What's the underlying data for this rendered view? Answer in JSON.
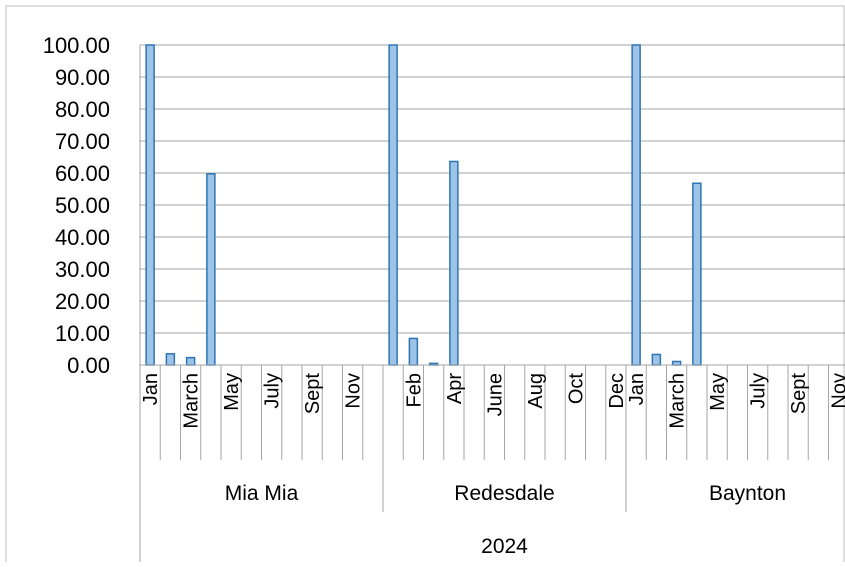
{
  "chart_data": {
    "type": "bar",
    "title": "",
    "xlabel": "",
    "ylabel": "",
    "ylim": [
      0,
      100
    ],
    "yticks": [
      "0.00",
      "10.00",
      "20.00",
      "30.00",
      "40.00",
      "50.00",
      "60.00",
      "70.00",
      "80.00",
      "90.00",
      "100.00"
    ],
    "grid": true,
    "legend": "none",
    "bar_color": "#9DC3E6",
    "bar_edge_color": "#2E75B6",
    "year_label": "2024",
    "groups": [
      {
        "name": "Mia Mia",
        "tick_labels": [
          {
            "slot": 0,
            "text": "Jan"
          },
          {
            "slot": 2,
            "text": "March"
          },
          {
            "slot": 4,
            "text": "May"
          },
          {
            "slot": 6,
            "text": "July"
          },
          {
            "slot": 8,
            "text": "Sept"
          },
          {
            "slot": 10,
            "text": "Nov"
          }
        ],
        "values": [
          100,
          3.5,
          2.3,
          59.7,
          0,
          0,
          0,
          0,
          0,
          0,
          0,
          0
        ]
      },
      {
        "name": "Redesdale",
        "tick_labels": [
          {
            "slot": 1,
            "text": "Feb"
          },
          {
            "slot": 3,
            "text": "Apr"
          },
          {
            "slot": 5,
            "text": "June"
          },
          {
            "slot": 7,
            "text": "Aug"
          },
          {
            "slot": 9,
            "text": "Oct"
          },
          {
            "slot": 11,
            "text": "Dec"
          }
        ],
        "values": [
          100,
          8.3,
          0.5,
          63.6,
          0,
          0,
          0,
          0,
          0,
          0,
          0,
          0
        ]
      },
      {
        "name": "Baynton",
        "tick_labels": [
          {
            "slot": 0,
            "text": "Jan"
          },
          {
            "slot": 2,
            "text": "March"
          },
          {
            "slot": 4,
            "text": "May"
          },
          {
            "slot": 6,
            "text": "July"
          },
          {
            "slot": 8,
            "text": "Sept"
          },
          {
            "slot": 10,
            "text": "Nov"
          }
        ],
        "values": [
          100,
          3.3,
          1.1,
          56.8,
          0,
          0,
          0,
          0,
          0,
          0,
          0,
          0
        ]
      }
    ]
  }
}
